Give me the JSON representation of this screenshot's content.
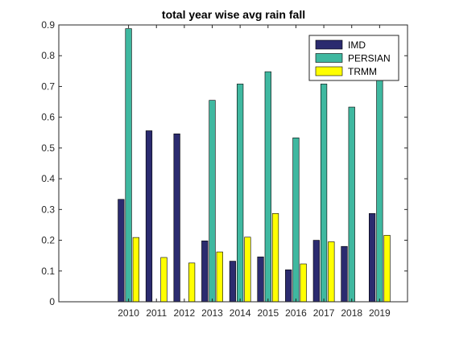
{
  "chart_data": {
    "type": "bar",
    "title": "total year wise avg rain fall",
    "xlabel": "",
    "ylabel": "",
    "categories": [
      "2010",
      "2011",
      "2012",
      "2013",
      "2014",
      "2015",
      "2016",
      "2017",
      "2018",
      "2019"
    ],
    "series": [
      {
        "name": "IMD",
        "color": "#2b2b6f",
        "values": [
          0.333,
          0.556,
          0.546,
          0.198,
          0.132,
          0.146,
          0.104,
          0.2,
          0.18,
          0.287
        ]
      },
      {
        "name": "PERSIAN",
        "color": "#3fb8a0",
        "values": [
          0.888,
          0,
          0,
          0.655,
          0.708,
          0.748,
          0.533,
          0.708,
          0.633,
          0.721
        ]
      },
      {
        "name": "TRMM",
        "color": "#ffff00",
        "values": [
          0.209,
          0.144,
          0.126,
          0.162,
          0.21,
          0.287,
          0.123,
          0.195,
          0,
          0.216
        ]
      }
    ],
    "ylim": [
      0,
      0.9
    ],
    "yticks": [
      0,
      0.1,
      0.2,
      0.3,
      0.4,
      0.5,
      0.6,
      0.7,
      0.8,
      0.9
    ],
    "ytick_labels": [
      "0",
      "0.1",
      "0.2",
      "0.3",
      "0.4",
      "0.5",
      "0.6",
      "0.7",
      "0.8",
      "0.9"
    ],
    "xlim": [
      2007.5,
      2020
    ],
    "legend_position": "top-right",
    "grid": false
  }
}
